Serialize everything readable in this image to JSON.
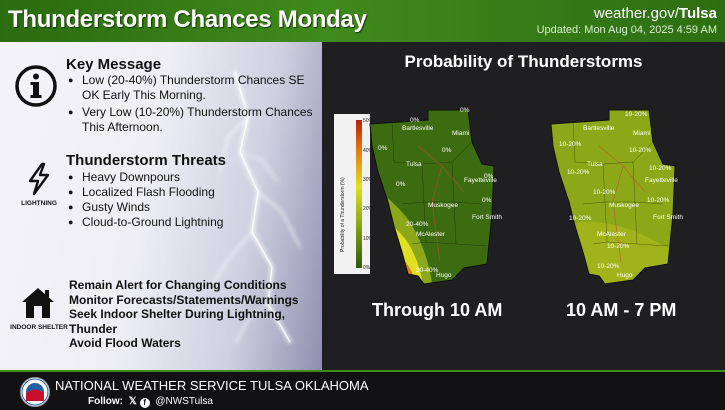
{
  "header": {
    "title": "Thunderstorm Chances Monday",
    "site_prefix": "weather.gov/",
    "site_office": "Tulsa",
    "updated": "Updated: Mon Aug 04, 2025 4:59 AM"
  },
  "key_message": {
    "icon": "info-icon",
    "title": "Key Message",
    "bullets": [
      "Low (20-40%) Thunderstorm Chances SE OK Early This Morning.",
      "Very Low (10-20%) Thunderstorm Chances This Afternoon."
    ]
  },
  "threats": {
    "icon": "lightning-icon",
    "icon_label": "LIGHTNING",
    "title": "Thunderstorm Threats",
    "bullets": [
      "Heavy Downpours",
      "Localized Flash Flooding",
      "Gusty Winds",
      "Cloud-to-Ground Lightning"
    ]
  },
  "shelter": {
    "icon": "house-icon",
    "icon_label": "INDOOR SHELTER",
    "lines": [
      "Remain Alert for Changing Conditions",
      "Monitor Forecasts/Statements/Warnings",
      "Seek Indoor Shelter During Lightning, Thunder",
      "Avoid Flood Waters"
    ]
  },
  "maps": {
    "title": "Probability of Thunderstorms",
    "scale_title": "Probability of a Thunderstorm (%)",
    "scale_ticks": [
      "50%",
      "40%",
      "30%",
      "20%",
      "10%",
      "0%"
    ],
    "colors": {
      "green": "#3d6b10",
      "lightgreen": "#8ca818",
      "yellow": "#e0e022",
      "orange": "#e07a14",
      "red": "#b8200c"
    },
    "map1": {
      "caption": "Through 10 AM",
      "cities": [
        "Bartlesville",
        "Miami",
        "Tulsa",
        "Fayetteville",
        "Muskogee",
        "Fort Smith",
        "McAlester",
        "Hugo"
      ],
      "labels": [
        "0%",
        "0%",
        "0%",
        "0%",
        "0%",
        "0%",
        "0%",
        "20-40%",
        "30-40%"
      ]
    },
    "map2": {
      "caption": "10 AM - 7 PM",
      "cities": [
        "Bartlesville",
        "Miami",
        "Tulsa",
        "Fayetteville",
        "Muskogee",
        "Fort Smith",
        "McAlester",
        "Hugo"
      ],
      "labels": [
        "10-20%",
        "10-20%",
        "10-20%",
        "10-20%",
        "10-20%",
        "10-20%",
        "10-20%",
        "10-20%",
        "10-20%",
        "10-20%"
      ]
    }
  },
  "footer": {
    "office": "NATIONAL WEATHER SERVICE TULSA OKLAHOMA",
    "follow": "Follow:",
    "handle": "@NWSTulsa",
    "seal": "noaa-nws-seal"
  }
}
